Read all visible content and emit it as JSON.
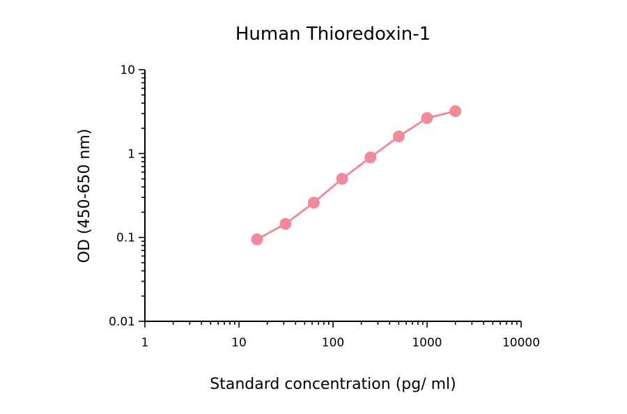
{
  "chart_data": {
    "type": "line",
    "title": "Human Thioredoxin-1",
    "xlabel": "Standard concentration (pg/ ml)",
    "ylabel": "OD (450-650 nm)",
    "x_scale": "log",
    "y_scale": "log",
    "xlim": [
      1,
      10000
    ],
    "ylim": [
      0.01,
      10
    ],
    "x_ticks": [
      "1",
      "10",
      "100",
      "1000",
      "10000"
    ],
    "y_ticks": [
      "0.01",
      "0.1",
      "1",
      "10"
    ],
    "grid": false,
    "series": [
      {
        "color": "#f28a9c",
        "x": [
          15.6,
          31.25,
          62.5,
          125,
          250,
          500,
          1000,
          2000
        ],
        "y": [
          0.095,
          0.145,
          0.26,
          0.5,
          0.9,
          1.6,
          2.65,
          3.2
        ]
      }
    ]
  }
}
